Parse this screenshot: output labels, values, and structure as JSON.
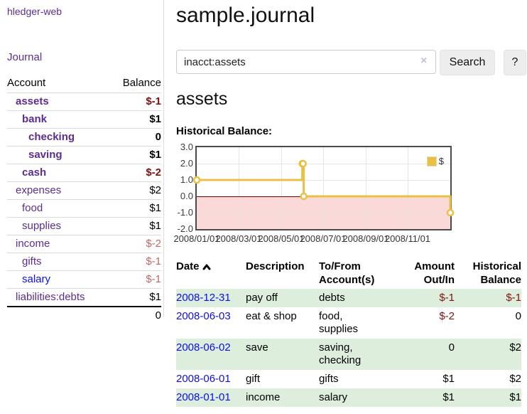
{
  "app": {
    "title": "hledger-web"
  },
  "sidebar": {
    "journal_link": "Journal",
    "headers": {
      "account": "Account",
      "balance": "Balance"
    },
    "rows": [
      {
        "account": "assets",
        "balance": "$-1"
      },
      {
        "account": "bank",
        "balance": "$1"
      },
      {
        "account": "checking",
        "balance": "0"
      },
      {
        "account": "saving",
        "balance": "$1"
      },
      {
        "account": "cash",
        "balance": "$-2"
      },
      {
        "account": "expenses",
        "balance": "$2"
      },
      {
        "account": "food",
        "balance": "$1"
      },
      {
        "account": "supplies",
        "balance": "$1"
      },
      {
        "account": "income",
        "balance": "$-2"
      },
      {
        "account": "gifts",
        "balance": "$-1"
      },
      {
        "account": "salary",
        "balance": "$-1"
      },
      {
        "account": "liabilities:debts",
        "balance": "$1"
      }
    ],
    "total": "0"
  },
  "main": {
    "title": "sample.journal",
    "search": {
      "value": "inacct:assets",
      "clear_icon": "×",
      "button_label": "Search",
      "help_label": "?"
    },
    "account_heading": "assets",
    "section_label": "Historical Balance:"
  },
  "chart_data": {
    "type": "line",
    "title": "Historical Balance:",
    "step": "left",
    "x_range": [
      "2008-01-01",
      "2008-12-31"
    ],
    "ylim": [
      -2,
      3
    ],
    "series": [
      {
        "name": "$",
        "points": [
          [
            "2008-01-01",
            1
          ],
          [
            "2008-06-01",
            2
          ],
          [
            "2008-06-02",
            2
          ],
          [
            "2008-06-03",
            0
          ],
          [
            "2008-12-31",
            -1
          ]
        ]
      }
    ],
    "x_tick_labels": [
      "2008/01/01",
      "2008/03/01",
      "2008/05/01",
      "2008/07/01",
      "2008/09/01",
      "2008/11/01"
    ],
    "y_tick_labels": [
      "3.0",
      "2.0",
      "1.0",
      "0.0",
      "-1.0",
      "-2.0"
    ],
    "legend": {
      "label": "$",
      "position": "top-right"
    },
    "colors": {
      "line": "#e9c044",
      "negative_fill": "#fbd9d9",
      "zero_line": "#7a0000",
      "grid": "#e4e4e4"
    }
  },
  "register": {
    "headers": {
      "date": "Date",
      "description": "Description",
      "accounts": "To/From\nAccount(s)",
      "amount": "Amount\nOut/In",
      "balance": "Historical\nBalance"
    },
    "rows": [
      {
        "date": "2008-12-31",
        "description": "pay off",
        "accounts": "debts",
        "amount": "$-1",
        "balance": "$-1"
      },
      {
        "date": "2008-06-03",
        "description": "eat & shop",
        "accounts": "food, supplies",
        "amount": "$-2",
        "balance": "0"
      },
      {
        "date": "2008-06-02",
        "description": "save",
        "accounts": "saving,\nchecking",
        "amount": "0",
        "balance": "$2"
      },
      {
        "date": "2008-06-01",
        "description": "gift",
        "accounts": "gifts",
        "amount": "$1",
        "balance": "$2"
      },
      {
        "date": "2008-01-01",
        "description": "income",
        "accounts": "salary",
        "amount": "$1",
        "balance": "$1"
      }
    ]
  }
}
